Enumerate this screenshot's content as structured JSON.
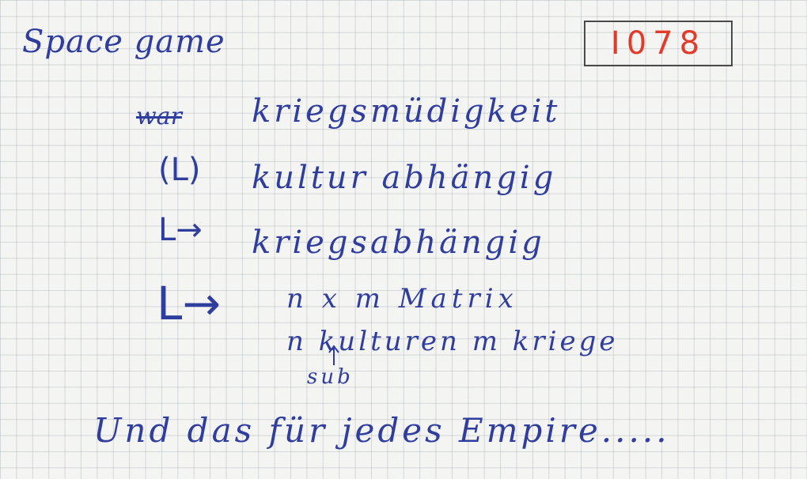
{
  "note": {
    "title": "Space game",
    "id_tag": "I078",
    "struck_word": "war",
    "topic": "kriegsmüdigkeit",
    "branches": [
      {
        "arrow": "(L)",
        "text": "kultur abhängig"
      },
      {
        "arrow": "L→",
        "text": "kriegsabhängig"
      },
      {
        "arrow": "L→",
        "text": "n x m Matrix"
      }
    ],
    "matrix_detail": "n kulturen m kriege",
    "sub_label": "sub",
    "footer": "Und das für jedes Empire....."
  },
  "colors": {
    "ink_blue": "#2f3e9e",
    "tag_red": "#e23b2a",
    "box_border": "#4a4a4a",
    "paper": "#f4f4f2",
    "grid": "#96a0aa"
  }
}
